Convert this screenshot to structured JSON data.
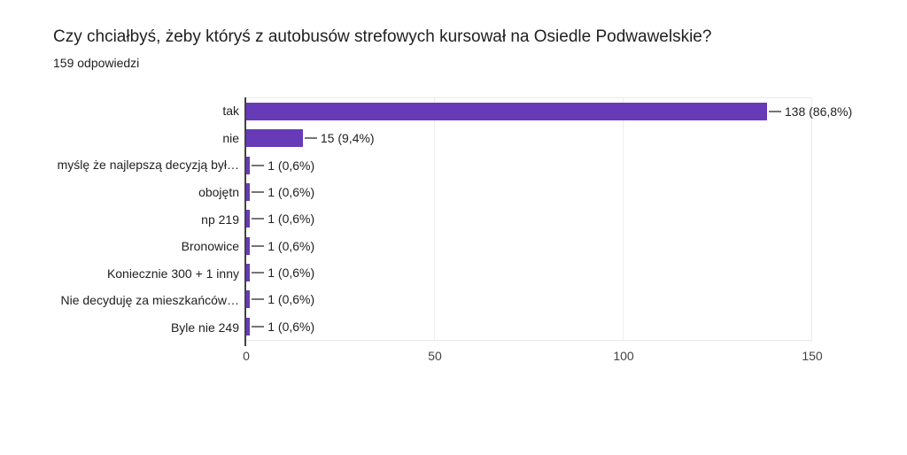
{
  "chart_data": {
    "type": "bar",
    "orientation": "horizontal",
    "title": "Czy chciałbyś, żeby któryś z autobusów strefowych kursował na Osiedle Podwawelskie?",
    "subtitle": "159 odpowiedzi",
    "categories": [
      "tak",
      "nie",
      "myślę że najlepszą decyzją był…",
      "obojętn",
      "np 219",
      "Bronowice",
      "Koniecznie 300 + 1 inny",
      "Nie decyduję za mieszkańców…",
      "Byle nie 249"
    ],
    "values": [
      138,
      15,
      1,
      1,
      1,
      1,
      1,
      1,
      1
    ],
    "value_labels": [
      "138 (86,8%)",
      "15 (9,4%)",
      "1 (0,6%)",
      "1 (0,6%)",
      "1 (0,6%)",
      "1 (0,6%)",
      "1 (0,6%)",
      "1 (0,6%)",
      "1 (0,6%)"
    ],
    "x_ticks": [
      "0",
      "50",
      "100",
      "150"
    ],
    "x_tick_values": [
      0,
      50,
      100,
      150
    ],
    "xlim": [
      0,
      150
    ],
    "grid": true,
    "legend": "none",
    "colors": {
      "bar": "#673ab7",
      "text": "#212121",
      "tick_text": "#424242",
      "leader_line": "#757575",
      "gridline": "#ededed",
      "axis_line": "#424242",
      "background": "#ffffff"
    }
  }
}
